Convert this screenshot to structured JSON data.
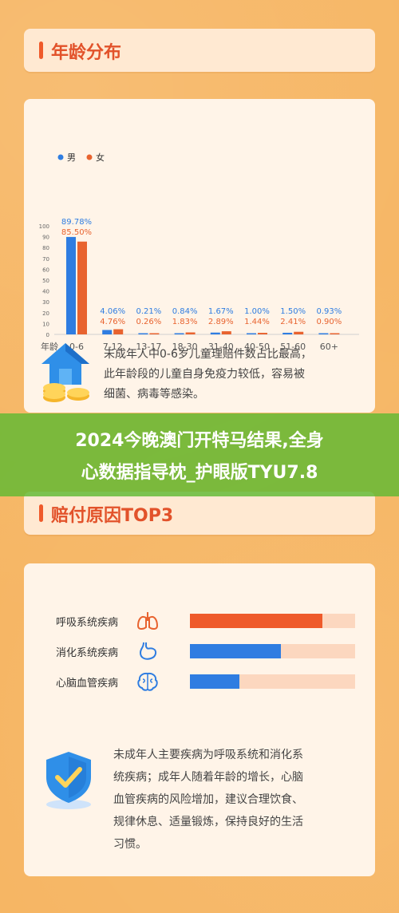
{
  "header1": {
    "title": "年龄分布"
  },
  "header2": {
    "title": "赔付原因TOP3"
  },
  "overlay": {
    "line1": "2024今晚澳门开特马结果,全身",
    "line2": "心数据指导枕_护眼版TYU7.8"
  },
  "age_note": {
    "line1": "未成年人中0-6岁儿童理赔件数占比最高，",
    "line2": "此年龄段的儿童自身免疫力较低，容易被",
    "line3": "细菌、病毒等感染。"
  },
  "reason_note": {
    "line1": "未成年人主要疾病为呼吸系统和消化系",
    "line2": "统疾病；成年人随着年龄的增长，心脑",
    "line3": "血管疾病的风险增加，建议合理饮食、",
    "line4": "规律休息、适量锻炼，保持良好的生活",
    "line5": "习惯。"
  },
  "colors": {
    "male": "#2f7de1",
    "female": "#e8632f",
    "track": "#fcd7bf"
  },
  "chart_data": [
    {
      "type": "bar",
      "title": "",
      "xlabel": "年龄",
      "ylabel": "",
      "ylim": [
        0,
        100
      ],
      "yticks": [
        "0",
        "10",
        "20",
        "30",
        "40",
        "50",
        "60",
        "70",
        "80",
        "90",
        "100"
      ],
      "categories": [
        "0-6",
        "7-12",
        "13-17",
        "18-30",
        "31-40",
        "40-50",
        "51-60",
        "60+"
      ],
      "legend_position": "top-left",
      "series": [
        {
          "name": "男",
          "values": [
            89.78,
            4.06,
            0.21,
            0.84,
            1.67,
            1.0,
            1.5,
            0.93
          ],
          "labels": [
            "89.78%",
            "4.06%",
            "0.21%",
            "0.84%",
            "1.67%",
            "1.00%",
            "1.50%",
            "0.93%"
          ]
        },
        {
          "name": "女",
          "values": [
            85.5,
            4.76,
            0.26,
            1.83,
            2.89,
            1.44,
            2.41,
            0.9
          ],
          "labels": [
            "85.50%",
            "4.76%",
            "0.26%",
            "1.83%",
            "2.89%",
            "1.44%",
            "2.41%",
            "0.90%"
          ]
        }
      ]
    },
    {
      "type": "bar",
      "orientation": "horizontal",
      "categories": [
        "呼吸系统疾病",
        "消化系统疾病",
        "心脑血管疾病"
      ],
      "values": [
        0.8,
        0.55,
        0.3
      ],
      "icons": [
        "lungs-icon",
        "stomach-icon",
        "brain-icon"
      ],
      "bar_colors": [
        "#ef5a2a",
        "#2f7de1",
        "#2f7de1"
      ]
    }
  ]
}
